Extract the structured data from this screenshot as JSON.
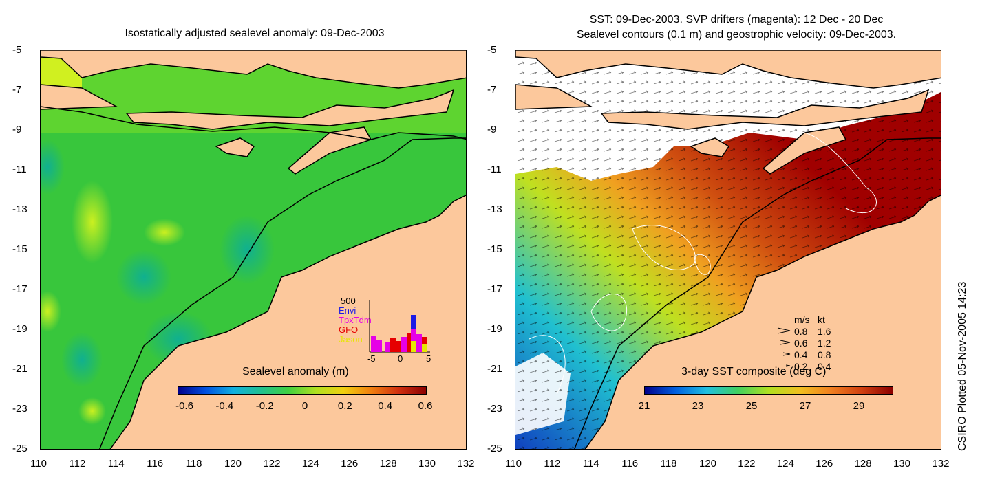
{
  "left_title": "Isostatically adjusted sealevel anomaly: 09-Dec-2003",
  "right_title_line1": "SST: 09-Dec-2003. SVP drifters (magenta): 12 Dec - 20 Dec",
  "right_title_line2": "Sealevel contours (0.1 m) and geostrophic velocity: 09-Dec-2003.",
  "side_label": "CSIRO Plotted 05-Nov-2005 14:23",
  "y_ticks": [
    "-5",
    "-7",
    "-9",
    "-11",
    "-13",
    "-15",
    "-17",
    "-19",
    "-21",
    "-23",
    "-25"
  ],
  "x_ticks": [
    "110",
    "112",
    "114",
    "116",
    "118",
    "120",
    "122",
    "124",
    "126",
    "128",
    "130",
    "132"
  ],
  "left_colorbar": {
    "title": "Sealevel anomaly (m)",
    "ticks": [
      "-0.6",
      "-0.4",
      "-0.2",
      "0",
      "0.2",
      "0.4",
      "0.6"
    ]
  },
  "right_colorbar": {
    "title": "3-day SST composite (deg C)",
    "ticks": [
      "21",
      "23",
      "25",
      "27",
      "29"
    ]
  },
  "satellite_legend": {
    "ymax": "500",
    "names": [
      "Envi",
      "TpxTdm",
      "GFO",
      "Jason"
    ],
    "colors": [
      "#1a1ae6",
      "#e600e6",
      "#e60000",
      "#e6e600"
    ],
    "x_ticks": [
      "-5",
      "0",
      "5"
    ]
  },
  "velocity_legend": {
    "header_ms": "m/s",
    "header_kt": "kt",
    "rows": [
      {
        "ms": "0.8",
        "kt": "1.6"
      },
      {
        "ms": "0.6",
        "kt": "1.2"
      },
      {
        "ms": "0.4",
        "kt": "0.8"
      },
      {
        "ms": "0.2",
        "kt": "0.4"
      }
    ]
  },
  "colors": {
    "land": "#fcc89c",
    "sla_base": "#33c840",
    "sst_warm": "#a00000"
  }
}
